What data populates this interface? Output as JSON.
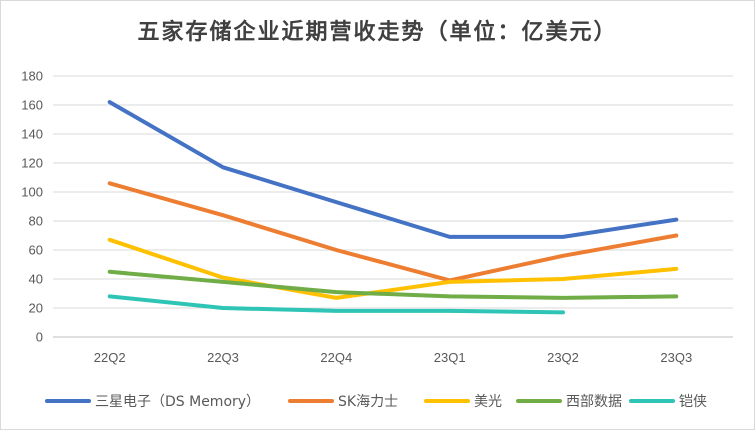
{
  "chart_data": {
    "type": "line",
    "title": "五家存储企业近期营收走势（单位：亿美元）",
    "categories": [
      "22Q2",
      "22Q3",
      "22Q4",
      "23Q1",
      "23Q2",
      "23Q3"
    ],
    "ylim": [
      0,
      180
    ],
    "yticks": [
      0,
      20,
      40,
      60,
      80,
      100,
      120,
      140,
      160,
      180
    ],
    "grid": true,
    "legend_position": "bottom",
    "series": [
      {
        "name": "三星电子（DS Memory）",
        "color": "#4472c4",
        "values": [
          162,
          117,
          93,
          69,
          69,
          81
        ]
      },
      {
        "name": "SK海力士",
        "color": "#ed7d31",
        "values": [
          106,
          84,
          60,
          39,
          56,
          70
        ]
      },
      {
        "name": "美光",
        "color": "#ffc000",
        "values": [
          67,
          41,
          27,
          38,
          40,
          47
        ]
      },
      {
        "name": "西部数据",
        "color": "#70ad47",
        "values": [
          45,
          38,
          31,
          28,
          27,
          28
        ]
      },
      {
        "name": "铠侠",
        "color": "#2ec4b6",
        "values": [
          28,
          20,
          18,
          18,
          17,
          null
        ]
      }
    ]
  }
}
